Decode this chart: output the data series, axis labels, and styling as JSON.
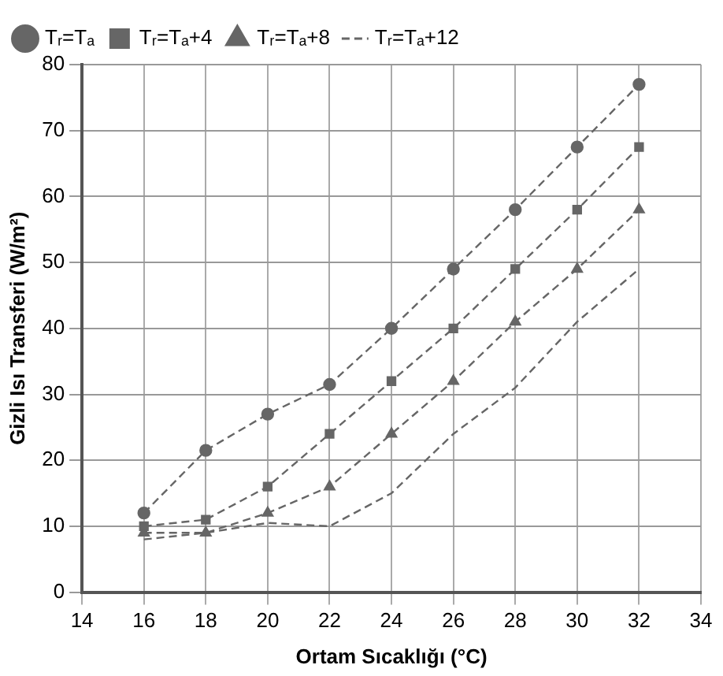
{
  "chart_data": {
    "type": "line",
    "xlabel": "Ortam Sıcaklığı (°C)",
    "ylabel": "Gizli Isı Transferi (W/m²)",
    "x": [
      16,
      18,
      20,
      22,
      24,
      26,
      28,
      30,
      32
    ],
    "series": [
      {
        "name": "Tᵣ=Tₐ",
        "color": "#666666",
        "marker": "circle",
        "values": [
          12,
          21.5,
          27,
          31.5,
          40,
          49,
          58,
          67.5,
          77
        ]
      },
      {
        "name": "Tᵣ=Tₐ+4",
        "color": "#666666",
        "marker": "square",
        "values": [
          10,
          11,
          16,
          24,
          32,
          40,
          49,
          58,
          67.5
        ]
      },
      {
        "name": "Tᵣ=Tₐ+8",
        "color": "#666666",
        "marker": "triangle",
        "values": [
          9,
          9,
          12,
          16,
          24,
          32,
          41,
          49,
          58
        ]
      },
      {
        "name": "Tᵣ=Tₐ+12",
        "color": "#666666",
        "marker": "none",
        "values": [
          8,
          9,
          10.5,
          10,
          15,
          24,
          31,
          41,
          49
        ]
      }
    ],
    "xlim": [
      14,
      34
    ],
    "xticks": [
      14,
      16,
      18,
      20,
      22,
      24,
      26,
      28,
      30,
      32,
      34
    ],
    "ylim": [
      0,
      80
    ],
    "yticks": [
      0,
      10,
      20,
      30,
      40,
      50,
      60,
      70,
      80
    ],
    "grid": true,
    "legend": "top left",
    "line_style": "dashed"
  }
}
